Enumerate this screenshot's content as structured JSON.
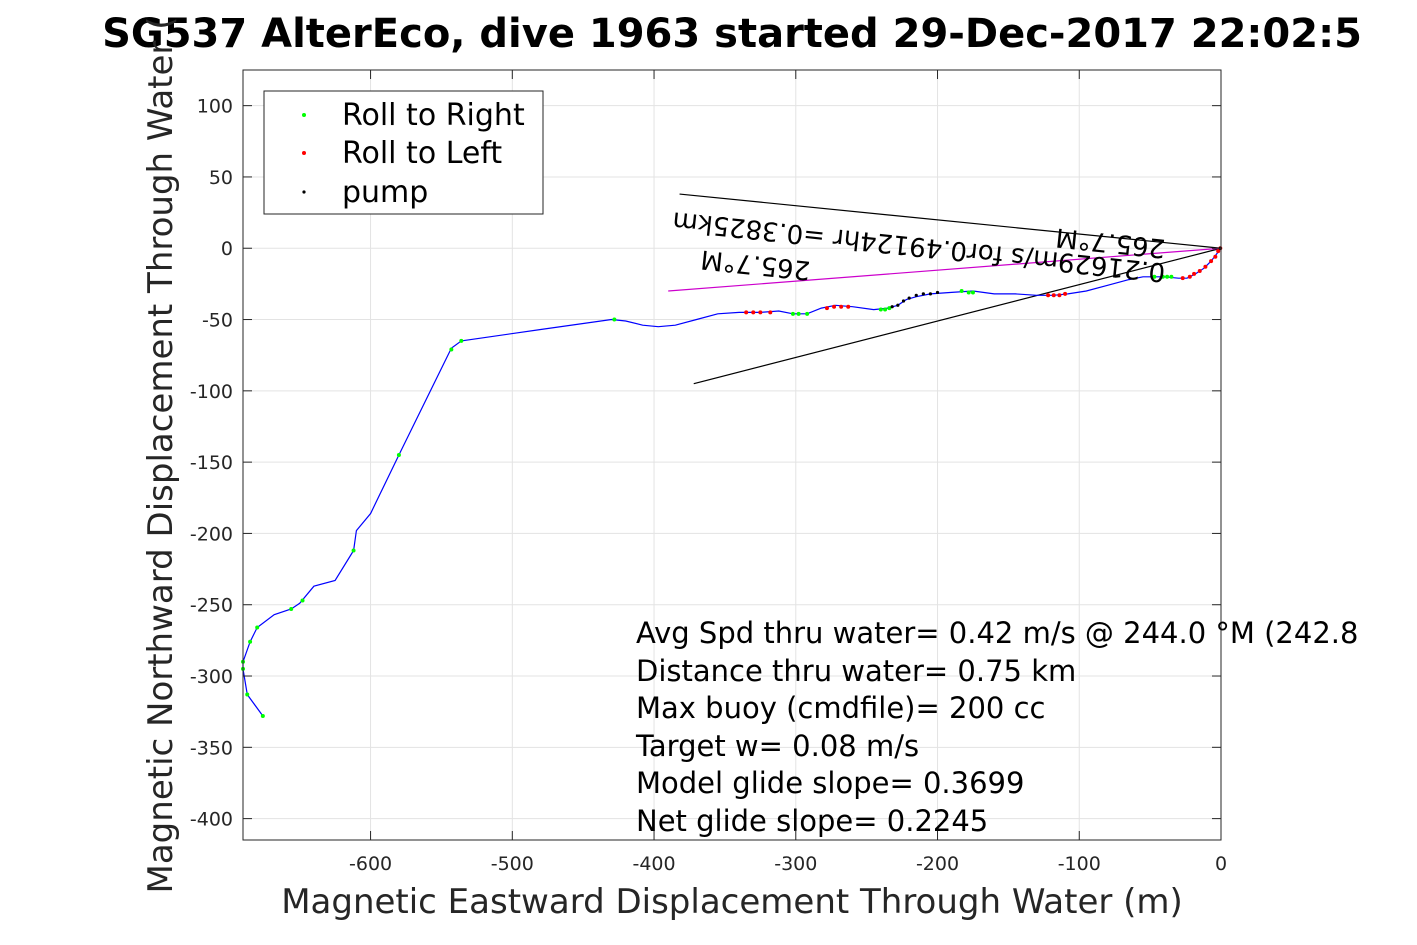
{
  "chart_data": {
    "type": "line",
    "title": "SG537 AlterEco, dive 1963 started 29-Dec-2017 22:02:5",
    "xlabel": "Magnetic Eastward Displacement Through Water (m)",
    "ylabel": "Magnetic Northward Displacement Through Water (",
    "xlim": [
      -690,
      0
    ],
    "ylim": [
      -415,
      125
    ],
    "xticks": [
      -600,
      -500,
      -400,
      -300,
      -200,
      -100,
      0
    ],
    "yticks": [
      -400,
      -350,
      -300,
      -250,
      -200,
      -150,
      -100,
      -50,
      0,
      50,
      100
    ],
    "grid": true,
    "legend_position": "top-left",
    "legend": [
      {
        "label": "Roll to Right",
        "color": "#00ff00"
      },
      {
        "label": "Roll to Left",
        "color": "#ff0000"
      },
      {
        "label": "pump",
        "color": "#000000"
      }
    ],
    "track_color": "#0000ff",
    "track": [
      [
        0,
        0
      ],
      [
        -3,
        -4
      ],
      [
        -7,
        -9
      ],
      [
        -12,
        -14
      ],
      [
        -18,
        -18
      ],
      [
        -24,
        -21
      ],
      [
        -30,
        -21
      ],
      [
        -40,
        -20
      ],
      [
        -55,
        -20
      ],
      [
        -65,
        -22
      ],
      [
        -80,
        -26
      ],
      [
        -95,
        -30
      ],
      [
        -108,
        -32
      ],
      [
        -118,
        -33
      ],
      [
        -130,
        -33
      ],
      [
        -145,
        -32
      ],
      [
        -160,
        -32
      ],
      [
        -175,
        -30
      ],
      [
        -190,
        -31
      ],
      [
        -205,
        -32
      ],
      [
        -215,
        -34
      ],
      [
        -222,
        -36
      ],
      [
        -228,
        -40
      ],
      [
        -235,
        -42
      ],
      [
        -245,
        -43
      ],
      [
        -260,
        -41
      ],
      [
        -272,
        -40
      ],
      [
        -282,
        -42
      ],
      [
        -292,
        -46
      ],
      [
        -302,
        -46
      ],
      [
        -312,
        -44
      ],
      [
        -325,
        -45
      ],
      [
        -340,
        -45
      ],
      [
        -355,
        -46
      ],
      [
        -370,
        -50
      ],
      [
        -385,
        -54
      ],
      [
        -397,
        -55
      ],
      [
        -408,
        -54
      ],
      [
        -420,
        -51
      ],
      [
        -430,
        -50
      ],
      [
        -480,
        -57
      ],
      [
        -536,
        -65
      ],
      [
        -543,
        -70
      ],
      [
        -580,
        -145
      ],
      [
        -600,
        -186
      ],
      [
        -610,
        -198
      ],
      [
        -612,
        -212
      ],
      [
        -625,
        -233
      ],
      [
        -640,
        -237
      ],
      [
        -650,
        -249
      ],
      [
        -656,
        -253
      ],
      [
        -668,
        -257
      ],
      [
        -680,
        -266
      ],
      [
        -685,
        -276
      ],
      [
        -690,
        -290
      ],
      [
        -690,
        -295
      ],
      [
        -687,
        -313
      ],
      [
        -676,
        -328
      ]
    ],
    "roll_right": [
      [
        -47,
        -20
      ],
      [
        -41,
        -20
      ],
      [
        -38,
        -20
      ],
      [
        -35,
        -20
      ],
      [
        -178,
        -31
      ],
      [
        -175,
        -31
      ],
      [
        -183,
        -30
      ],
      [
        -240,
        -43
      ],
      [
        -237,
        -43
      ],
      [
        -234,
        -42
      ],
      [
        -292,
        -46
      ],
      [
        -298,
        -46
      ],
      [
        -302,
        -46
      ],
      [
        -428,
        -50
      ],
      [
        -536,
        -65
      ],
      [
        -543,
        -71
      ],
      [
        -580,
        -145
      ],
      [
        -612,
        -212
      ],
      [
        -648,
        -247
      ],
      [
        -656,
        -253
      ],
      [
        -680,
        -266
      ],
      [
        -685,
        -276
      ],
      [
        -690,
        -290
      ],
      [
        -690,
        -295
      ],
      [
        -687,
        -313
      ],
      [
        -676,
        -328
      ]
    ],
    "roll_left": [
      [
        -2,
        -2
      ],
      [
        -4,
        -6
      ],
      [
        -7,
        -9
      ],
      [
        -11,
        -13
      ],
      [
        -15,
        -16
      ],
      [
        -19,
        -18
      ],
      [
        -22,
        -20
      ],
      [
        -27,
        -21
      ],
      [
        -110,
        -32
      ],
      [
        -114,
        -33
      ],
      [
        -118,
        -33
      ],
      [
        -122,
        -33
      ],
      [
        -263,
        -41
      ],
      [
        -268,
        -41
      ],
      [
        -273,
        -41
      ],
      [
        -278,
        -42
      ],
      [
        -325,
        -45
      ],
      [
        -330,
        -45
      ],
      [
        -335,
        -45
      ],
      [
        -318,
        -45
      ],
      [
        -0.5,
        0
      ]
    ],
    "pump": [
      [
        -200,
        -31
      ],
      [
        -205,
        -32
      ],
      [
        -210,
        -32
      ],
      [
        -215,
        -33
      ],
      [
        -220,
        -35
      ],
      [
        -224,
        -37
      ],
      [
        -228,
        -40
      ],
      [
        -232,
        -41
      ],
      [
        -0.5,
        0
      ]
    ],
    "current_cone": {
      "upper": [
        [
          0,
          0
        ],
        [
          -382,
          38
        ]
      ],
      "lower": [
        [
          0,
          0
        ],
        [
          -372,
          -95
        ]
      ],
      "center": [
        [
          0,
          0
        ],
        [
          -390,
          -30
        ]
      ],
      "center_color": "#cc00cc"
    },
    "current_labels": {
      "near_label": "265.7°M",
      "speed_label": "0.21629m/s for0.49124hr =0.3825km",
      "far_label": "265.7°M"
    },
    "annotations": [
      "Avg Spd thru water=  0.42 m/s @ 244.0 °M (242.8",
      "Distance thru water=  0.75 km",
      "Max buoy (cmdfile)= 200 cc",
      "Target w= 0.08 m/s",
      "Model glide slope= 0.3699",
      "Net glide slope= 0.2245"
    ]
  }
}
